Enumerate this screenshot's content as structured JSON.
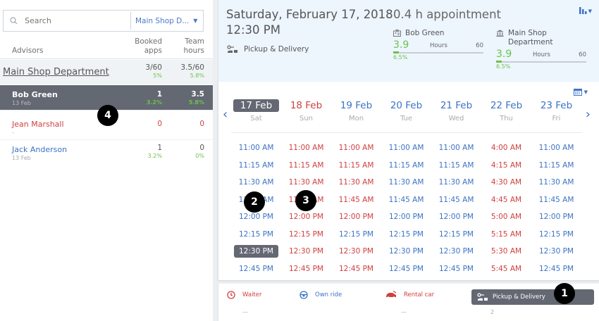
{
  "left_panel": {
    "search": {
      "placeholder": "Search",
      "value": ""
    },
    "department_select": {
      "value": "Main Shop D...",
      "icon": "caret-down-icon"
    },
    "columns": {
      "advisors": "Advisors",
      "booked_1": "Booked",
      "booked_2": "apps",
      "team_1": "Team",
      "team_2": "hours"
    },
    "department": {
      "name": "Main Shop Department",
      "booked": "3/60",
      "booked_pct": "5%",
      "hours": "3.5/60",
      "hours_pct": "5.8%"
    },
    "advisors": [
      {
        "name": "Bob Green",
        "date": "13 Feb",
        "booked": "1",
        "booked_pct": "3.2%",
        "hours": "3.5",
        "hours_pct": "5.8%",
        "state": "selected"
      },
      {
        "name": "Jean Marshall",
        "date": "-",
        "booked": "0",
        "booked_pct": "",
        "hours": "0",
        "hours_pct": "",
        "state": "unavailable"
      },
      {
        "name": "Jack Anderson",
        "date": "13 Feb",
        "booked": "1",
        "booked_pct": "3.2%",
        "hours": "0",
        "hours_pct": "0%",
        "state": "available"
      }
    ]
  },
  "header": {
    "date": "Saturday, February 17, 2018",
    "time": "12:30 PM",
    "service": "Pickup & Delivery",
    "appointment": "0.4 h appointment",
    "advisor_meter": {
      "label": "Bob Green",
      "value": "3.9",
      "unit": "Hours",
      "max": "60",
      "pct": "6.5%"
    },
    "department_meter": {
      "label": "Main Shop Department",
      "value": "3.9",
      "unit": "Hours",
      "max": "60",
      "pct": "6.5%"
    }
  },
  "calendar": {
    "prev_icon": "chevron-left-icon",
    "next_icon": "chevron-right-icon",
    "days": [
      {
        "date": "17 Feb",
        "day": "Sat",
        "state": "selected"
      },
      {
        "date": "18 Feb",
        "day": "Sun",
        "state": "unavailable"
      },
      {
        "date": "19 Feb",
        "day": "Mon",
        "state": "available"
      },
      {
        "date": "20 Feb",
        "day": "Tue",
        "state": "available"
      },
      {
        "date": "21 Feb",
        "day": "Wed",
        "state": "available"
      },
      {
        "date": "22 Feb",
        "day": "Thu",
        "state": "available"
      },
      {
        "date": "23 Feb",
        "day": "Fri",
        "state": "available"
      }
    ],
    "slots": [
      [
        [
          "11:00 AM",
          "a"
        ],
        [
          "11:15 AM",
          "a"
        ],
        [
          "11:30 AM",
          "a"
        ],
        [
          "11:45 AM",
          "a"
        ],
        [
          "12:00 PM",
          "a"
        ],
        [
          "12:15 PM",
          "a"
        ],
        [
          "12:30 PM",
          "s"
        ],
        [
          "12:45 PM",
          "a"
        ]
      ],
      [
        [
          "11:00 AM",
          "u"
        ],
        [
          "11:15 AM",
          "u"
        ],
        [
          "11:30 AM",
          "u"
        ],
        [
          "11:45 AM",
          "u"
        ],
        [
          "12:00 PM",
          "u"
        ],
        [
          "12:15 PM",
          "u"
        ],
        [
          "12:30 PM",
          "u"
        ],
        [
          "12:45 PM",
          "u"
        ]
      ],
      [
        [
          "11:00 AM",
          "u"
        ],
        [
          "11:15 AM",
          "u"
        ],
        [
          "11:30 AM",
          "u"
        ],
        [
          "11:45 AM",
          "u"
        ],
        [
          "12:00 PM",
          "u"
        ],
        [
          "12:15 PM",
          "a"
        ],
        [
          "12:30 PM",
          "u"
        ],
        [
          "12:45 PM",
          "u"
        ]
      ],
      [
        [
          "11:00 AM",
          "a"
        ],
        [
          "11:15 AM",
          "a"
        ],
        [
          "11:30 AM",
          "a"
        ],
        [
          "11:45 AM",
          "a"
        ],
        [
          "12:00 PM",
          "a"
        ],
        [
          "12:15 PM",
          "a"
        ],
        [
          "12:30 PM",
          "a"
        ],
        [
          "12:45 PM",
          "a"
        ]
      ],
      [
        [
          "11:00 AM",
          "a"
        ],
        [
          "11:15 AM",
          "a"
        ],
        [
          "11:30 AM",
          "a"
        ],
        [
          "11:45 AM",
          "a"
        ],
        [
          "12:00 PM",
          "a"
        ],
        [
          "12:15 PM",
          "a"
        ],
        [
          "12:30 PM",
          "a"
        ],
        [
          "12:45 PM",
          "a"
        ]
      ],
      [
        [
          "4:00 AM",
          "u"
        ],
        [
          "4:15 AM",
          "u"
        ],
        [
          "4:30 AM",
          "u"
        ],
        [
          "4:45 AM",
          "u"
        ],
        [
          "5:00 AM",
          "u"
        ],
        [
          "5:15 AM",
          "u"
        ],
        [
          "5:30 AM",
          "u"
        ],
        [
          "5:45 AM",
          "u"
        ]
      ],
      [
        [
          "11:00 AM",
          "a"
        ],
        [
          "11:15 AM",
          "a"
        ],
        [
          "11:30 AM",
          "a"
        ],
        [
          "11:45 AM",
          "a"
        ],
        [
          "12:00 PM",
          "a"
        ],
        [
          "12:15 PM",
          "a"
        ],
        [
          "12:30 PM",
          "a"
        ],
        [
          "12:45 PM",
          "a"
        ]
      ]
    ]
  },
  "transport_options": [
    {
      "label": "Waiter",
      "count": "—",
      "color": "#d04040",
      "icon": "clock-icon"
    },
    {
      "label": "Own ride",
      "count": "",
      "color": "#3c73c4",
      "icon": "steering-wheel-icon"
    },
    {
      "label": "Rental car",
      "count": "—",
      "color": "#d04040",
      "icon": "car-icon"
    },
    {
      "label": "Pickup & Delivery",
      "count": "2",
      "color": "#ffffff",
      "icon": "pickup-delivery-icon",
      "selected": true
    }
  ],
  "markers": [
    "1",
    "2",
    "3",
    "4"
  ],
  "colors": {
    "available": "#3c73c4",
    "unavailable": "#d04040",
    "selected_bg": "#636873",
    "positive": "#6cc24a",
    "header_bg": "#edf5fd"
  }
}
